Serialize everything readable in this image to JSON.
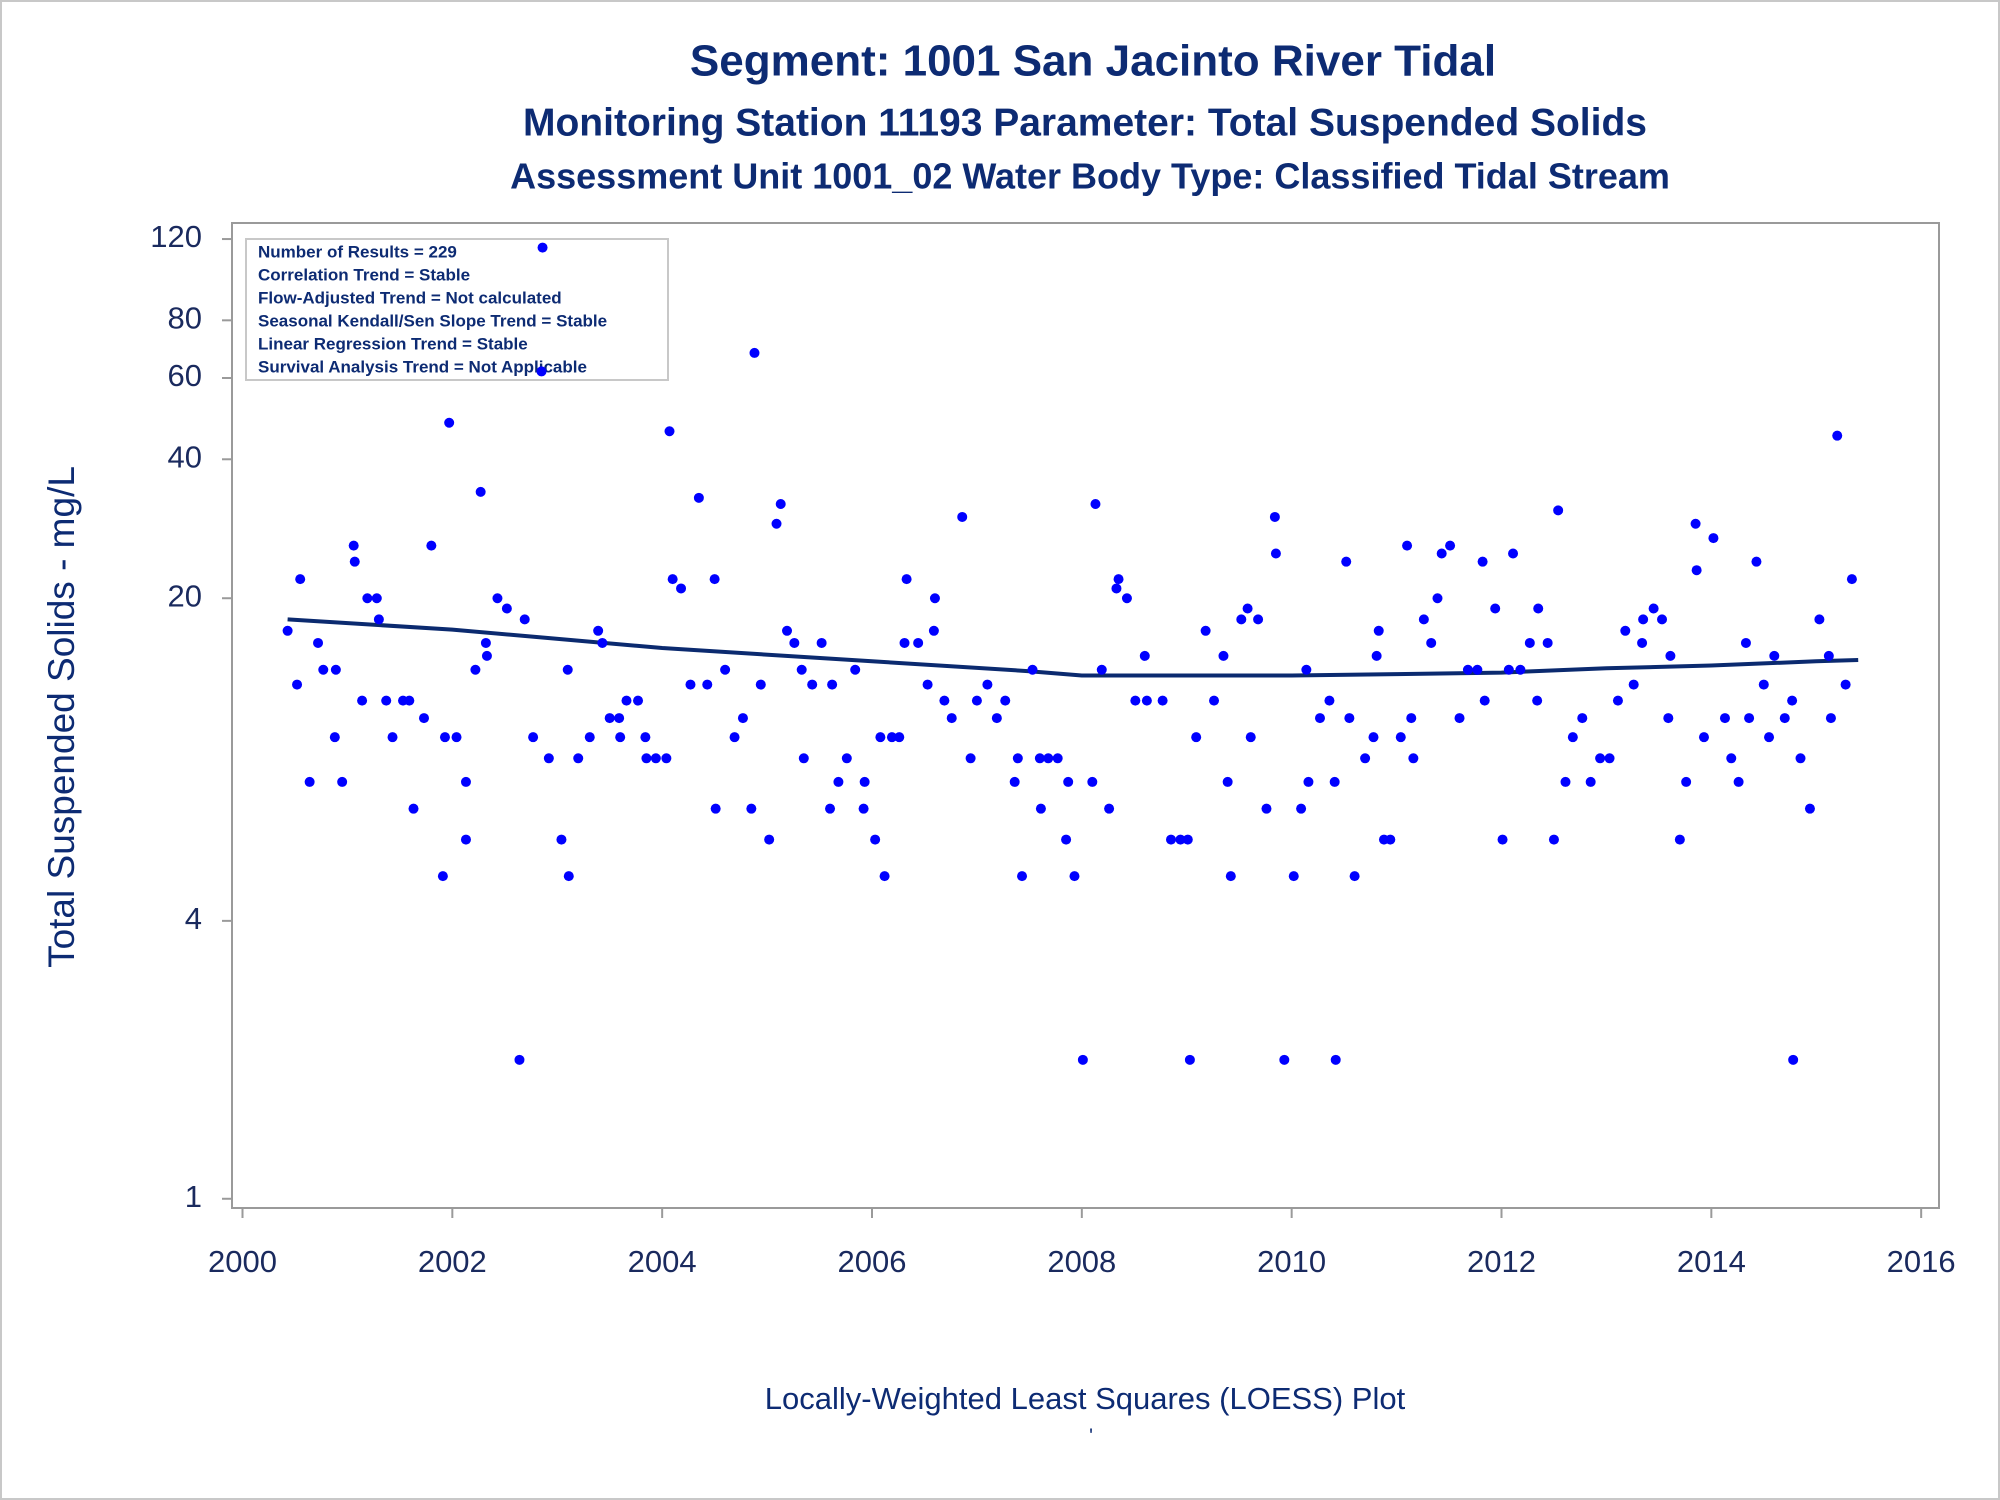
{
  "chart_data": {
    "type": "scatter",
    "titles": [
      "Segment: 1001  San Jacinto River Tidal",
      "Monitoring Station 11193 Parameter: Total Suspended Solids",
      "Assessment Unit 1001_02   Water Body Type: Classified Tidal Stream"
    ],
    "y_label": "Total Suspended Solids - mg/L",
    "footnote": "Locally-Weighted Least Squares (LOESS) Plot",
    "footnote_mark": "'",
    "annotations": [
      "Number of Results = 229",
      "Correlation Trend = Stable",
      "Flow-Adjusted Trend = Not calculated",
      "Seasonal Kendall/Sen Slope Trend = Stable",
      "Linear Regression Trend = Stable",
      "Survival Analysis Trend = Not Applicable"
    ],
    "log_y": true,
    "xlim": [
      1999.9,
      2016.17
    ],
    "ylim": [
      0.955,
      130
    ],
    "xticks": [
      2000,
      2002,
      2004,
      2006,
      2008,
      2010,
      2012,
      2014,
      2016
    ],
    "yticks": [
      1,
      4,
      20,
      40,
      60,
      80,
      120
    ],
    "color": "#0000ff",
    "x": [
      2000.43,
      2000.52,
      2000.55,
      2000.64,
      2000.72,
      2000.77,
      2000.88,
      2000.89,
      2000.95,
      2001.06,
      2001.07,
      2001.14,
      2001.19,
      2001.28,
      2001.3,
      2001.37,
      2001.43,
      2001.53,
      2001.59,
      2001.63,
      2001.73,
      2001.8,
      2001.91,
      2001.93,
      2001.97,
      2002.04,
      2002.13,
      2002.13,
      2002.22,
      2002.27,
      2002.32,
      2002.33,
      2002.43,
      2002.52,
      2002.64,
      2002.69,
      2002.77,
      2002.86,
      2002.85,
      2002.92,
      2003.04,
      2003.11,
      2003.1,
      2003.2,
      2003.31,
      2003.39,
      2003.43,
      2003.5,
      2003.59,
      2003.6,
      2003.66,
      2003.77,
      2003.84,
      2003.85,
      2003.94,
      2004.04,
      2004.07,
      2004.1,
      2004.18,
      2004.27,
      2004.35,
      2004.43,
      2004.5,
      2004.51,
      2004.6,
      2004.69,
      2004.77,
      2004.85,
      2004.88,
      2004.94,
      2005.02,
      2005.09,
      2005.13,
      2005.19,
      2005.26,
      2005.33,
      2005.35,
      2005.43,
      2005.52,
      2005.6,
      2005.62,
      2005.68,
      2005.76,
      2005.84,
      2005.92,
      2005.93,
      2006.03,
      2006.08,
      2006.12,
      2006.19,
      2006.26,
      2006.31,
      2006.33,
      2006.44,
      2006.53,
      2006.59,
      2006.6,
      2006.69,
      2006.76,
      2006.86,
      2006.94,
      2007.0,
      2007.1,
      2007.19,
      2007.27,
      2007.36,
      2007.39,
      2007.43,
      2007.53,
      2007.6,
      2007.61,
      2007.68,
      2007.77,
      2007.85,
      2007.87,
      2007.93,
      2008.01,
      2008.1,
      2008.13,
      2008.19,
      2008.26,
      2008.33,
      2008.35,
      2008.43,
      2008.51,
      2008.6,
      2008.62,
      2008.77,
      2008.85,
      2008.94,
      2009.01,
      2009.03,
      2009.09,
      2009.18,
      2009.26,
      2009.35,
      2009.39,
      2009.42,
      2009.52,
      2009.58,
      2009.61,
      2009.68,
      2009.76,
      2009.84,
      2009.85,
      2009.93,
      2010.02,
      2010.09,
      2010.14,
      2010.16,
      2010.27,
      2010.36,
      2010.41,
      2010.42,
      2010.52,
      2010.55,
      2010.6,
      2010.7,
      2010.78,
      2010.81,
      2010.83,
      2010.88,
      2010.94,
      2011.04,
      2011.1,
      2011.14,
      2011.16,
      2011.26,
      2011.33,
      2011.39,
      2011.43,
      2011.51,
      2011.6,
      2011.68,
      2011.77,
      2011.82,
      2011.84,
      2011.94,
      2012.01,
      2012.07,
      2012.11,
      2012.18,
      2012.27,
      2012.34,
      2012.35,
      2012.44,
      2012.5,
      2012.54,
      2012.61,
      2012.68,
      2012.77,
      2012.85,
      2012.94,
      2013.03,
      2013.11,
      2013.18,
      2013.26,
      2013.34,
      2013.35,
      2013.45,
      2013.53,
      2013.59,
      2013.61,
      2013.7,
      2013.76,
      2013.85,
      2013.86,
      2013.93,
      2014.02,
      2014.13,
      2014.19,
      2014.26,
      2014.33,
      2014.36,
      2014.43,
      2014.5,
      2014.55,
      2014.6,
      2014.7,
      2014.78,
      2014.77,
      2014.85,
      2014.94,
      2015.03,
      2015.12,
      2015.14,
      2015.2,
      2015.28,
      2015.34
    ],
    "values": [
      17,
      13,
      22,
      8,
      16,
      14,
      10,
      14,
      8,
      26,
      24,
      12,
      20,
      20,
      18,
      12,
      10,
      12,
      12,
      7,
      11,
      26,
      5,
      10,
      48,
      10,
      8,
      6,
      14,
      34,
      16,
      15,
      20,
      19,
      2,
      18,
      10,
      115,
      62,
      9,
      6,
      5,
      14,
      9,
      10,
      17,
      16,
      11,
      11,
      10,
      12,
      12,
      10,
      9,
      9,
      9,
      46,
      22,
      21,
      13,
      33,
      13,
      22,
      7,
      14,
      10,
      11,
      7,
      68,
      13,
      6,
      29,
      32,
      17,
      16,
      14,
      9,
      13,
      16,
      7,
      13,
      8,
      9,
      14,
      7,
      8,
      6,
      10,
      5,
      10,
      10,
      16,
      22,
      16,
      13,
      17,
      20,
      12,
      11,
      30,
      9,
      12,
      13,
      11,
      12,
      8,
      9,
      5,
      14,
      9,
      7,
      9,
      9,
      6,
      8,
      5,
      2,
      8,
      32,
      14,
      7,
      21,
      22,
      20,
      12,
      15,
      12,
      12,
      6,
      6,
      6,
      2,
      10,
      17,
      12,
      15,
      8,
      5,
      18,
      19,
      10,
      18,
      7,
      30,
      25,
      2,
      5,
      7,
      14,
      8,
      11,
      12,
      8,
      2,
      24,
      11,
      5,
      9,
      10,
      15,
      17,
      6,
      6,
      10,
      26,
      11,
      9,
      18,
      16,
      20,
      25,
      26,
      11,
      14,
      14,
      24,
      12,
      19,
      6,
      14,
      25,
      14,
      16,
      12,
      19,
      16,
      6,
      31,
      8,
      10,
      11,
      8,
      9,
      9,
      12,
      17,
      13,
      16,
      18,
      19,
      18,
      11,
      15,
      6,
      8,
      29,
      23,
      10,
      27,
      11,
      9,
      8,
      16,
      11,
      24,
      13,
      10,
      15,
      11,
      2,
      12,
      9,
      7,
      18,
      15,
      11,
      45,
      13,
      22
    ],
    "trend": {
      "color": "#0b2a6f",
      "x": [
        2000.43,
        2002,
        2004,
        2006,
        2007.5,
        2008,
        2009,
        2010,
        2011,
        2012,
        2013,
        2014,
        2015,
        2015.4
      ],
      "values": [
        18,
        17.1,
        15.6,
        14.6,
        13.9,
        13.6,
        13.6,
        13.6,
        13.7,
        13.8,
        14.1,
        14.3,
        14.6,
        14.7
      ]
    }
  }
}
